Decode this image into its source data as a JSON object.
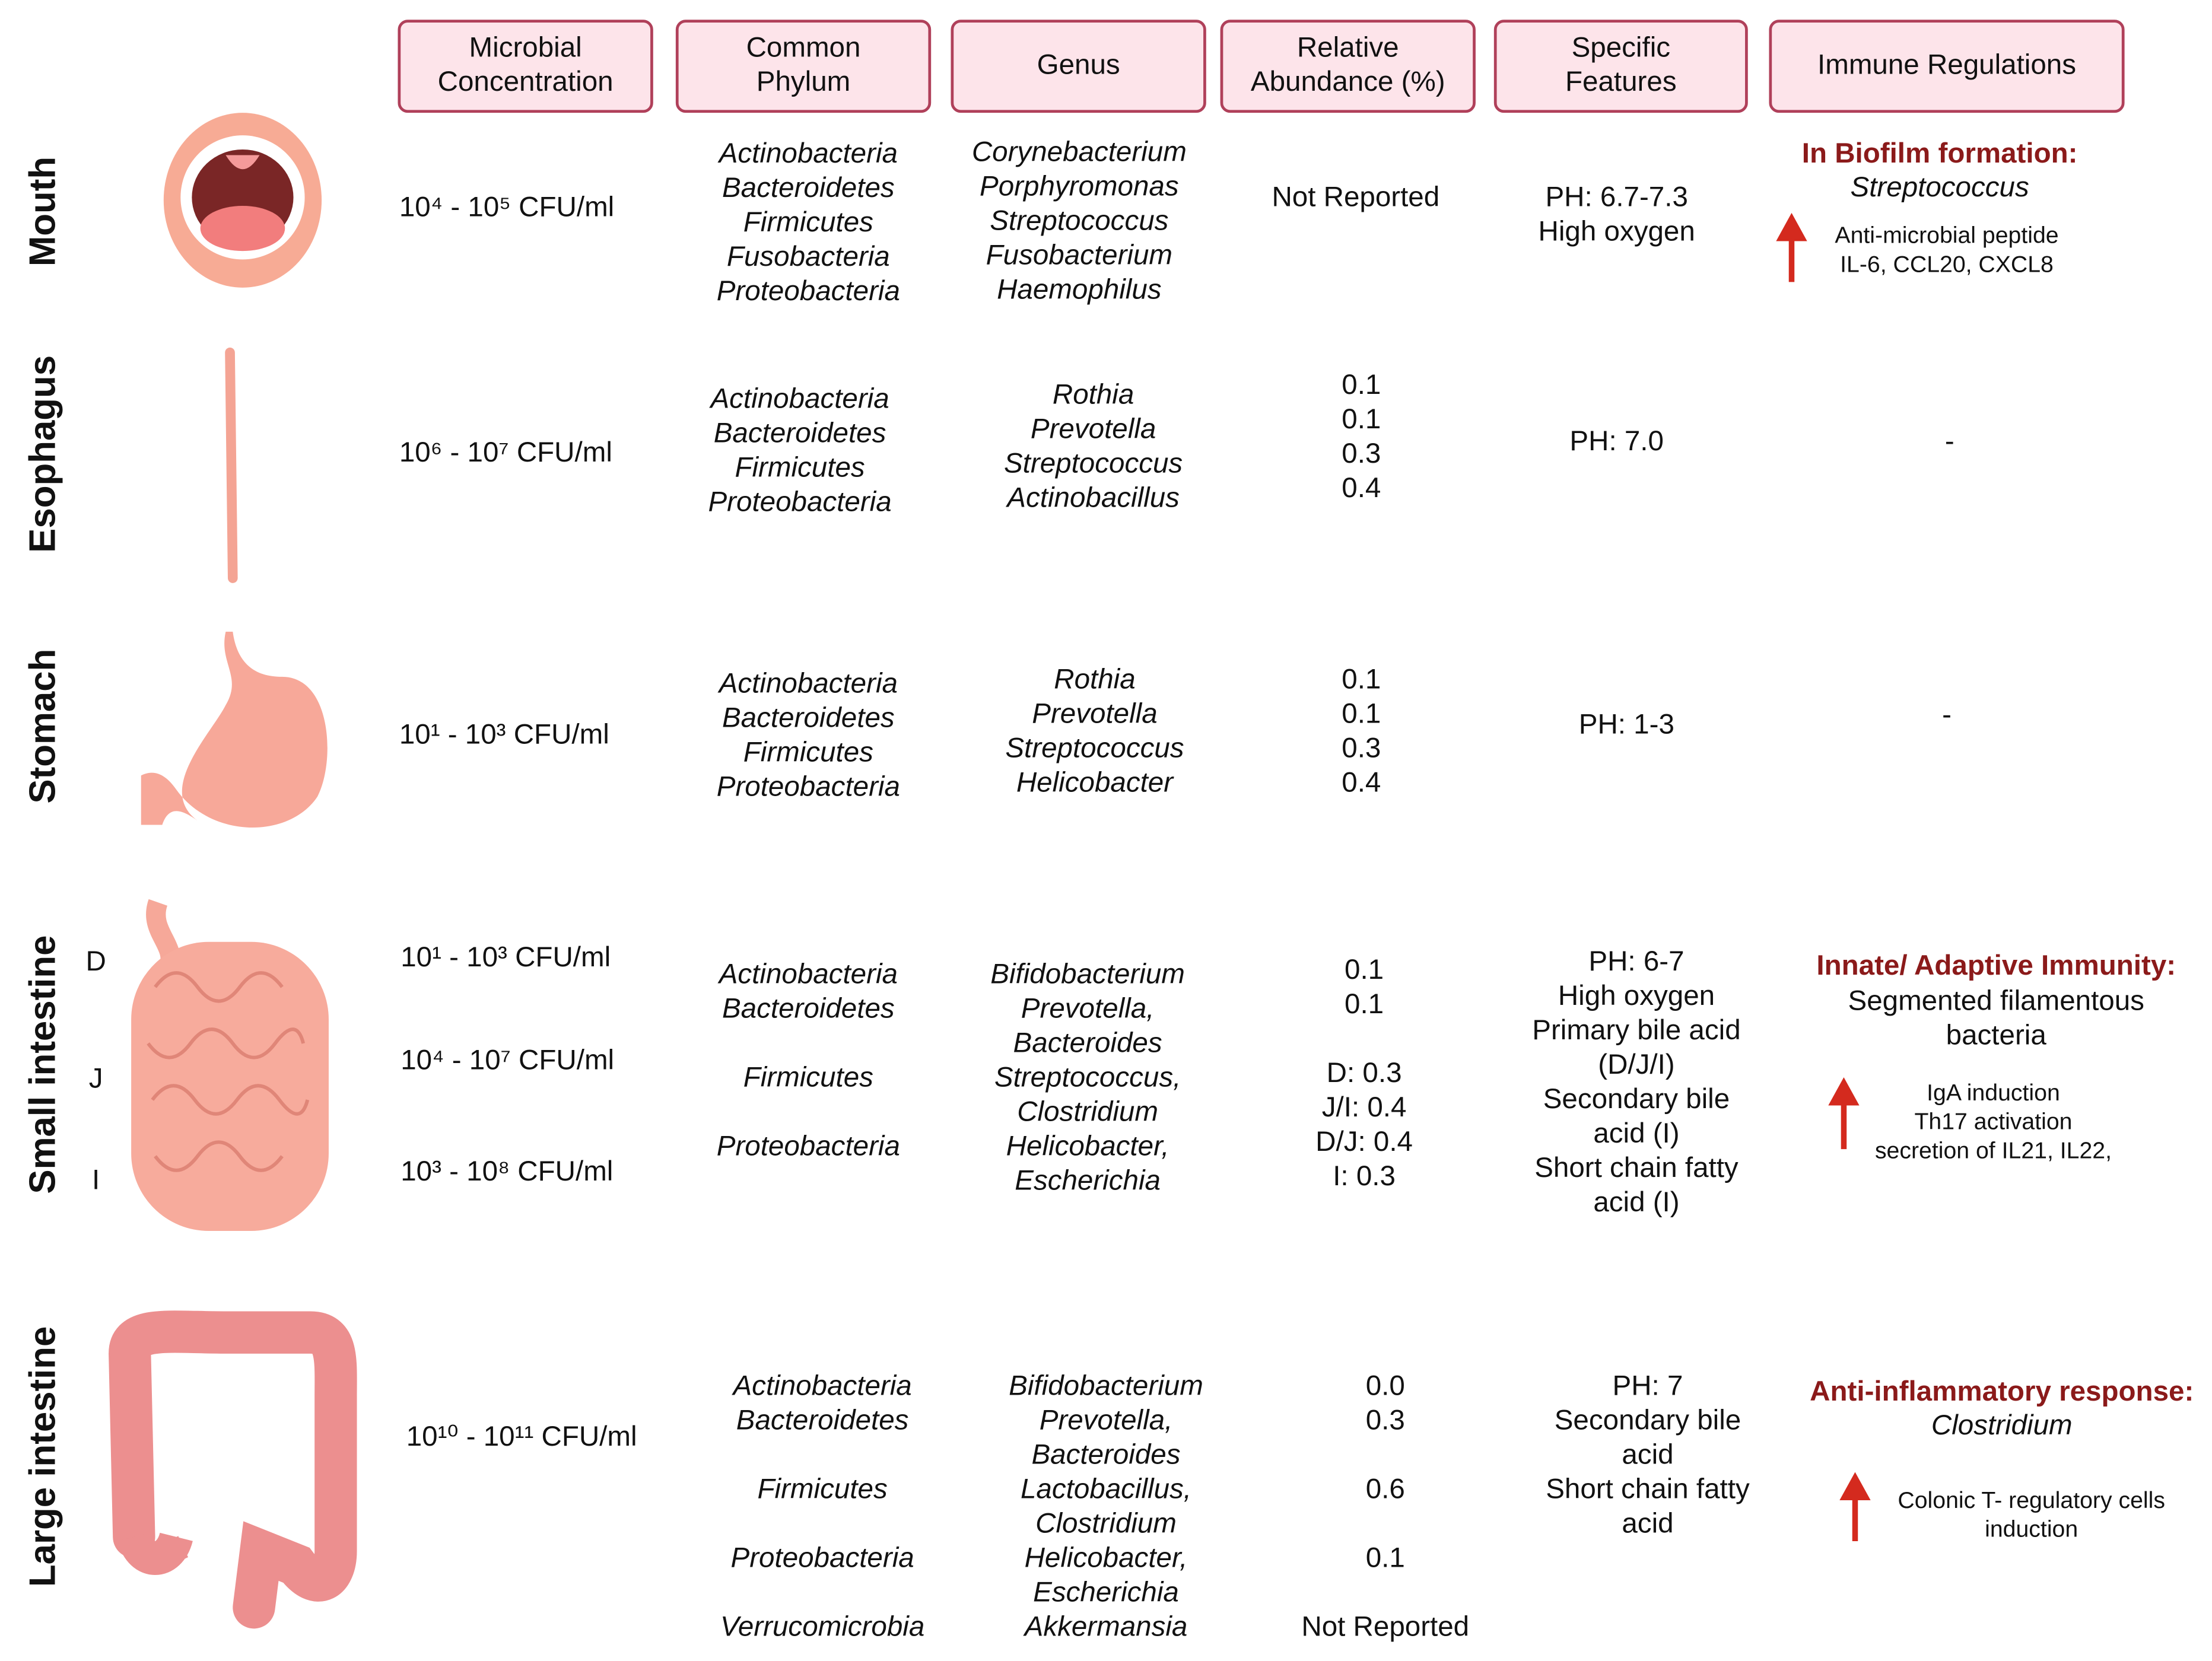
{
  "headers": [
    [
      "Microbial",
      "Concentration"
    ],
    [
      "Common",
      "Phylum"
    ],
    [
      "Genus"
    ],
    [
      "Relative",
      "Abundance (%)"
    ],
    [
      "Specific",
      "Features"
    ],
    [
      "Immune Regulations"
    ]
  ],
  "rows": [
    {
      "organ": "Mouth",
      "concentration": [
        "10⁴ - 10⁵  CFU/ml"
      ],
      "phylum": [
        "Actinobacteria",
        "Bacteroidetes",
        "Firmicutes",
        "Fusobacteria",
        "Proteobacteria"
      ],
      "genus": [
        "Corynebacterium",
        "Porphyromonas",
        "Streptococcus",
        "Fusobacterium",
        "Haemophilus"
      ],
      "abundance": [
        "Not Reported"
      ],
      "features": [
        "PH: 6.7-7.3",
        "High oxygen"
      ],
      "immune": {
        "heading": "In Biofilm formation:",
        "subtitle": [
          "Streptococcus"
        ],
        "items": [
          "Anti-microbial peptide",
          "IL-6, CCL20, CXCL8"
        ]
      }
    },
    {
      "organ": "Esophagus",
      "concentration": [
        "10⁶ - 10⁷  CFU/ml"
      ],
      "phylum": [
        "Actinobacteria",
        "Bacteroidetes",
        "Firmicutes",
        "Proteobacteria"
      ],
      "genus": [
        "Rothia",
        "Prevotella",
        "Streptococcus",
        "Actinobacillus"
      ],
      "abundance": [
        "0.1",
        "0.1",
        "0.3",
        "0.4"
      ],
      "features": [
        "PH: 7.0"
      ],
      "immune": {
        "text": "-"
      }
    },
    {
      "organ": "Stomach",
      "concentration": [
        "10¹ - 10³  CFU/ml"
      ],
      "phylum": [
        "Actinobacteria",
        "Bacteroidetes",
        "Firmicutes",
        "Proteobacteria"
      ],
      "genus": [
        "Rothia",
        "Prevotella",
        "Streptococcus",
        "Helicobacter"
      ],
      "abundance": [
        "0.1",
        "0.1",
        "0.3",
        "0.4"
      ],
      "features": [
        "PH: 1-3"
      ],
      "immune": {
        "text": "-"
      }
    },
    {
      "organ": "Small intestine",
      "segments": [
        "D",
        "J",
        "I"
      ],
      "concentration": [
        "10¹ - 10³  CFU/ml",
        "10⁴ - 10⁷  CFU/ml",
        "10³ - 10⁸  CFU/ml"
      ],
      "phylum": [
        "Actinobacteria",
        "Bacteroidetes",
        "Firmicutes",
        "Proteobacteria"
      ],
      "genus": [
        "Bifidobacterium",
        "Prevotella,",
        "Bacteroides",
        "Streptococcus,",
        "Clostridium",
        "Helicobacter,",
        "Escherichia"
      ],
      "abundance": [
        "0.1",
        "0.1",
        "D: 0.3",
        "J/I: 0.4",
        "D/J: 0.4",
        "I: 0.3"
      ],
      "features": [
        "PH: 6-7",
        "High oxygen",
        "Primary bile acid",
        "(D/J/I)",
        "Secondary bile",
        "acid (I)",
        "Short chain fatty",
        "acid (I)"
      ],
      "immune": {
        "heading": "Innate/ Adaptive Immunity:",
        "subtitle": [
          "Segmented filamentous",
          "bacteria"
        ],
        "items": [
          "IgA induction",
          "Th17 activation",
          "secretion of IL21, IL22,"
        ]
      }
    },
    {
      "organ": "Large  intestine",
      "concentration": [
        "10¹⁰ - 10¹¹  CFU/ml"
      ],
      "phylum": [
        "Actinobacteria",
        "Bacteroidetes",
        "Firmicutes",
        "Proteobacteria",
        "Verrucomicrobia"
      ],
      "genus": [
        "Bifidobacterium",
        "Prevotella,",
        "Bacteroides",
        "Lactobacillus,",
        "Clostridium",
        "Helicobacter,",
        "Escherichia",
        "Akkermansia"
      ],
      "abundance": [
        "0.0",
        "0.3",
        "0.6",
        "0.1",
        "Not Reported"
      ],
      "features": [
        "PH: 7",
        "Secondary bile",
        "acid",
        "Short chain fatty",
        "acid"
      ],
      "immune": {
        "heading": "Anti-inflammatory response:",
        "subtitle": [
          "Clostridium"
        ],
        "items": [
          "Colonic T- regulatory cells",
          "induction"
        ]
      }
    }
  ]
}
